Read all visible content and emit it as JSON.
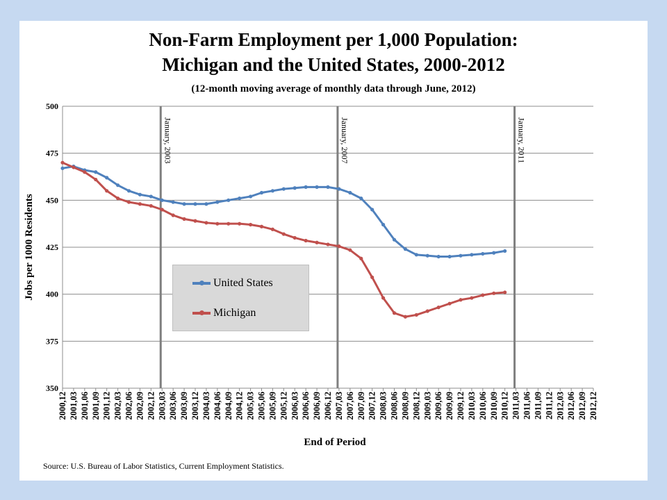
{
  "chart_data": {
    "type": "line",
    "title": "Non-Farm Employment per 1,000 Population:",
    "title_line2": "Michigan and the United States, 2000-2012",
    "subtitle": "(12-month moving average of monthly data through June, 2012)",
    "xlabel": "End of Period",
    "ylabel": "Jobs per 1000 Residents",
    "ylim": [
      350,
      500
    ],
    "yticks": [
      350,
      375,
      400,
      425,
      450,
      475,
      500
    ],
    "x_categories": [
      "2000,12",
      "2001,03",
      "2001,06",
      "2001,09",
      "2001,12",
      "2002,03",
      "2002,06",
      "2002,09",
      "2002,12",
      "2003,03",
      "2003,06",
      "2003,09",
      "2003,12",
      "2004,03",
      "2004,06",
      "2004,09",
      "2004,12",
      "2005,03",
      "2005,06",
      "2005,09",
      "2005,12",
      "2006,03",
      "2006,06",
      "2006,09",
      "2006,12",
      "2007,03",
      "2007,06",
      "2007,09",
      "2007,12",
      "2008,03",
      "2008,06",
      "2008,09",
      "2008,12",
      "2009,03",
      "2009,06",
      "2009,09",
      "2009,12",
      "2010,03",
      "2010,06",
      "2010,09",
      "2010,12",
      "2011,03",
      "2011,06",
      "2011,09",
      "2011,12",
      "2012,03",
      "2012,06",
      "2012,09",
      "2012,12"
    ],
    "grid": true,
    "legend": "inside-left",
    "series": [
      {
        "name": "United States",
        "color": "#4f81bd",
        "values": [
          467,
          468,
          466,
          465,
          462,
          458,
          455,
          453,
          452,
          450,
          449,
          448,
          448,
          448,
          449,
          450,
          451,
          452,
          454,
          455,
          456,
          456.5,
          457,
          457,
          457,
          456,
          454,
          451,
          445,
          437,
          429,
          424,
          421,
          420.5,
          420,
          420,
          420.5,
          421,
          421.5,
          422,
          423
        ]
      },
      {
        "name": "Michigan",
        "color": "#c0504d",
        "values": [
          470,
          467.5,
          465,
          461,
          455,
          451,
          449,
          448,
          447,
          445,
          442,
          440,
          439,
          438,
          437.5,
          437.5,
          437.5,
          437,
          436,
          434.5,
          432,
          430,
          428.5,
          427.5,
          426.5,
          425.5,
          423.5,
          419,
          409,
          398,
          390,
          388,
          389,
          391,
          393,
          395,
          397,
          398,
          399.5,
          400.5,
          401
        ]
      }
    ],
    "annotations": [
      {
        "label": "January, 2003",
        "x_index": 9
      },
      {
        "label": "January, 2007",
        "x_index": 25
      },
      {
        "label": "January, 2011",
        "x_index": 41
      }
    ]
  },
  "source": "Source: U.S. Bureau of Labor Statistics, Current Employment Statistics."
}
